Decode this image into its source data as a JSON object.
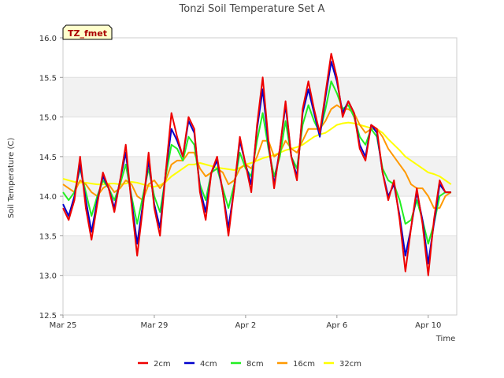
{
  "chart_data": {
    "type": "line",
    "title": "Tonzi Soil Temperature Set A",
    "xlabel": "Time",
    "ylabel": "Soil Temperature (C)",
    "badge": "TZ_fmet",
    "xlim": [
      0,
      17.25
    ],
    "ylim": [
      12.5,
      16.0
    ],
    "x_units": "days since Mar 25",
    "x_ticks": [
      {
        "value": 0,
        "label": "Mar 25"
      },
      {
        "value": 4,
        "label": "Mar 29"
      },
      {
        "value": 8,
        "label": "Apr 2"
      },
      {
        "value": 12,
        "label": "Apr 6"
      },
      {
        "value": 16,
        "label": "Apr 10"
      }
    ],
    "y_ticks": [
      12.5,
      13.0,
      13.5,
      14.0,
      14.5,
      15.0,
      15.5,
      16.0
    ],
    "x": [
      0.0,
      0.25,
      0.5,
      0.75,
      1.0,
      1.25,
      1.5,
      1.75,
      2.0,
      2.25,
      2.5,
      2.75,
      3.0,
      3.25,
      3.5,
      3.75,
      4.0,
      4.25,
      4.5,
      4.75,
      5.0,
      5.25,
      5.5,
      5.75,
      6.0,
      6.25,
      6.5,
      6.75,
      7.0,
      7.25,
      7.5,
      7.75,
      8.0,
      8.25,
      8.5,
      8.75,
      9.0,
      9.25,
      9.5,
      9.75,
      10.0,
      10.25,
      10.5,
      10.75,
      11.0,
      11.25,
      11.5,
      11.75,
      12.0,
      12.25,
      12.5,
      12.75,
      13.0,
      13.25,
      13.5,
      13.75,
      14.0,
      14.25,
      14.5,
      14.75,
      15.0,
      15.25,
      15.5,
      15.75,
      16.0,
      16.25,
      16.5,
      16.75,
      17.0
    ],
    "series": [
      {
        "name": "2cm",
        "color": "#ee0000",
        "values": [
          13.85,
          13.7,
          13.95,
          14.5,
          13.85,
          13.45,
          13.9,
          14.3,
          14.1,
          13.8,
          14.2,
          14.65,
          13.9,
          13.25,
          13.85,
          14.55,
          13.85,
          13.5,
          14.3,
          15.05,
          14.75,
          14.5,
          15.0,
          14.85,
          14.05,
          13.7,
          14.3,
          14.5,
          14.05,
          13.5,
          14.1,
          14.75,
          14.4,
          14.05,
          14.9,
          15.5,
          14.7,
          14.1,
          14.6,
          15.2,
          14.5,
          14.2,
          15.1,
          15.45,
          15.1,
          14.8,
          15.3,
          15.8,
          15.5,
          15.0,
          15.2,
          15.05,
          14.6,
          14.45,
          14.9,
          14.85,
          14.3,
          13.95,
          14.2,
          13.7,
          13.05,
          13.6,
          14.1,
          13.65,
          13.0,
          13.7,
          14.2,
          14.05,
          14.05
        ]
      },
      {
        "name": "4cm",
        "color": "#0000cc",
        "values": [
          13.9,
          13.75,
          14.0,
          14.4,
          13.95,
          13.55,
          13.95,
          14.25,
          14.1,
          13.85,
          14.2,
          14.55,
          13.95,
          13.4,
          13.9,
          14.45,
          13.9,
          13.6,
          14.3,
          14.85,
          14.7,
          14.5,
          14.95,
          14.8,
          14.1,
          13.8,
          14.3,
          14.45,
          14.05,
          13.6,
          14.1,
          14.7,
          14.4,
          14.15,
          14.85,
          15.35,
          14.65,
          14.15,
          14.6,
          15.15,
          14.5,
          14.25,
          15.05,
          15.35,
          15.05,
          14.75,
          15.25,
          15.7,
          15.45,
          15.05,
          15.2,
          15.05,
          14.65,
          14.5,
          14.9,
          14.8,
          14.3,
          14.0,
          14.15,
          13.75,
          13.25,
          13.6,
          14.05,
          13.7,
          13.15,
          13.65,
          14.15,
          14.05,
          14.05
        ]
      },
      {
        "name": "8cm",
        "color": "#22ee22",
        "values": [
          14.05,
          13.95,
          14.05,
          14.35,
          14.05,
          13.75,
          14.0,
          14.2,
          14.1,
          13.95,
          14.15,
          14.4,
          14.0,
          13.65,
          14.0,
          14.35,
          14.0,
          13.8,
          14.25,
          14.65,
          14.6,
          14.45,
          14.75,
          14.65,
          14.15,
          13.95,
          14.3,
          14.35,
          14.1,
          13.85,
          14.15,
          14.55,
          14.35,
          14.25,
          14.7,
          15.05,
          14.6,
          14.25,
          14.5,
          14.95,
          14.5,
          14.35,
          14.9,
          15.15,
          14.95,
          14.8,
          15.1,
          15.45,
          15.3,
          15.1,
          15.15,
          15.0,
          14.75,
          14.65,
          14.85,
          14.75,
          14.35,
          14.2,
          14.15,
          13.95,
          13.65,
          13.7,
          13.95,
          13.7,
          13.4,
          13.65,
          14.0,
          14.05,
          14.05
        ]
      },
      {
        "name": "16cm",
        "color": "#ff9900",
        "values": [
          14.15,
          14.1,
          14.05,
          14.2,
          14.15,
          14.05,
          14.0,
          14.1,
          14.15,
          14.05,
          14.1,
          14.2,
          14.15,
          14.0,
          13.95,
          14.15,
          14.2,
          14.1,
          14.2,
          14.4,
          14.45,
          14.45,
          14.55,
          14.55,
          14.35,
          14.25,
          14.3,
          14.35,
          14.3,
          14.15,
          14.2,
          14.35,
          14.4,
          14.35,
          14.5,
          14.7,
          14.7,
          14.5,
          14.55,
          14.7,
          14.6,
          14.55,
          14.7,
          14.85,
          14.85,
          14.85,
          14.95,
          15.1,
          15.15,
          15.1,
          15.1,
          15.05,
          14.9,
          14.8,
          14.85,
          14.85,
          14.75,
          14.6,
          14.5,
          14.4,
          14.3,
          14.15,
          14.1,
          14.1,
          14.0,
          13.85,
          13.85,
          14.0,
          14.05
        ]
      },
      {
        "name": "32cm",
        "color": "#ffff00",
        "values": [
          14.22,
          14.2,
          14.18,
          14.17,
          14.17,
          14.16,
          14.15,
          14.15,
          14.16,
          14.16,
          14.15,
          14.16,
          14.18,
          14.17,
          14.15,
          14.13,
          14.12,
          14.14,
          14.18,
          14.25,
          14.3,
          14.35,
          14.4,
          14.4,
          14.42,
          14.4,
          14.38,
          14.36,
          14.35,
          14.34,
          14.33,
          14.36,
          14.4,
          14.42,
          14.45,
          14.48,
          14.5,
          14.52,
          14.55,
          14.58,
          14.6,
          14.62,
          14.65,
          14.7,
          14.75,
          14.78,
          14.8,
          14.85,
          14.9,
          14.92,
          14.93,
          14.92,
          14.9,
          14.88,
          14.86,
          14.85,
          14.8,
          14.72,
          14.65,
          14.58,
          14.5,
          14.45,
          14.4,
          14.35,
          14.3,
          14.28,
          14.25,
          14.2,
          14.15
        ]
      }
    ],
    "legend_position": "bottom-center",
    "grid": "horizontal alternating bands"
  }
}
